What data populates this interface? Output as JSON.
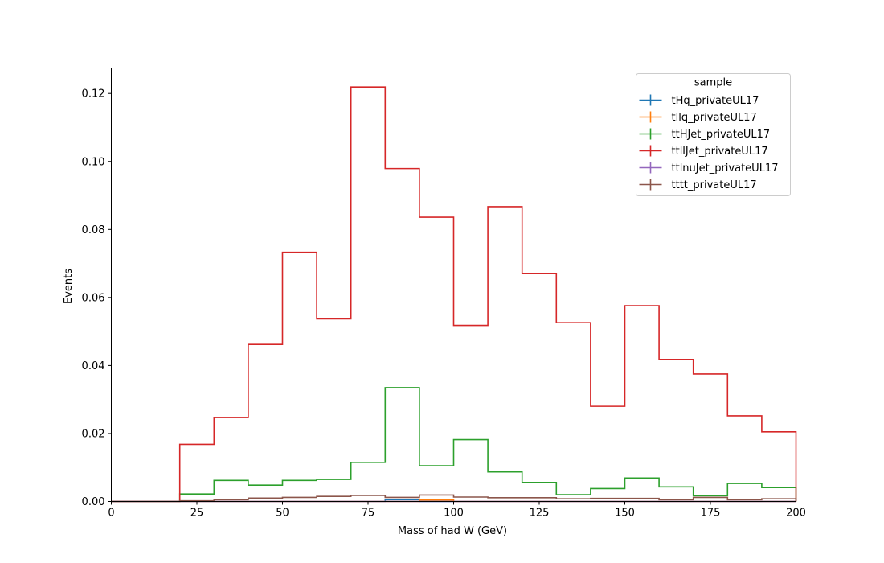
{
  "chart_data": {
    "type": "histogram-step",
    "xlabel": "Mass of had W (GeV)",
    "ylabel": "Events",
    "xlim": [
      0,
      200
    ],
    "ylim": [
      0,
      0.1275
    ],
    "x_ticks": [
      0,
      25,
      50,
      75,
      100,
      125,
      150,
      175,
      200
    ],
    "x_tick_labels": [
      "0",
      "25",
      "50",
      "75",
      "100",
      "125",
      "150",
      "175",
      "200"
    ],
    "y_ticks": [
      0.0,
      0.02,
      0.04,
      0.06,
      0.08,
      0.1,
      0.12
    ],
    "y_tick_labels": [
      "0.00",
      "0.02",
      "0.04",
      "0.06",
      "0.08",
      "0.10",
      "0.12"
    ],
    "bin_edges": [
      0,
      10,
      20,
      30,
      40,
      50,
      60,
      70,
      80,
      90,
      100,
      110,
      120,
      130,
      140,
      150,
      160,
      170,
      180,
      190,
      200
    ],
    "grid": false,
    "legend": {
      "title": "sample",
      "placement": "top-right"
    },
    "series": [
      {
        "name": "tHq_privateUL17",
        "color": "#1f77b4",
        "values": [
          0,
          0,
          0,
          0,
          0,
          0,
          0,
          0,
          0.0005,
          0,
          0,
          0,
          0,
          0,
          0,
          0,
          0,
          0,
          0,
          0
        ]
      },
      {
        "name": "tllq_privateUL17",
        "color": "#ff7f0e",
        "values": [
          0,
          0,
          0,
          0,
          0,
          0,
          0,
          0,
          0,
          0.0004,
          0,
          0,
          0,
          0,
          0,
          0,
          0,
          0,
          0,
          0
        ]
      },
      {
        "name": "ttHJet_privateUL17",
        "color": "#2ca02c",
        "values": [
          0,
          0,
          0.0022,
          0.0062,
          0.0048,
          0.0062,
          0.0065,
          0.0115,
          0.0335,
          0.0105,
          0.0182,
          0.0087,
          0.0056,
          0.002,
          0.0038,
          0.0069,
          0.0043,
          0.0017,
          0.0053,
          0.0041
        ]
      },
      {
        "name": "ttllJet_privateUL17",
        "color": "#d62728",
        "values": [
          0,
          0,
          0.0168,
          0.0247,
          0.0462,
          0.0733,
          0.0537,
          0.1219,
          0.0979,
          0.0836,
          0.0518,
          0.0867,
          0.067,
          0.0526,
          0.028,
          0.0576,
          0.0418,
          0.0375,
          0.0252,
          0.0205
        ]
      },
      {
        "name": "ttlnuJet_privateUL17",
        "color": "#9467bd",
        "values": [
          0,
          0,
          0,
          0,
          0,
          0,
          0,
          0,
          0,
          0,
          0,
          0,
          0,
          0,
          0,
          0,
          0,
          0,
          0,
          0
        ]
      },
      {
        "name": "tttt_privateUL17",
        "color": "#8c564b",
        "values": [
          0,
          0,
          0.0002,
          0.0005,
          0.001,
          0.0012,
          0.0015,
          0.0018,
          0.0012,
          0.0019,
          0.0013,
          0.0011,
          0.0011,
          0.0008,
          0.0009,
          0.0009,
          0.0005,
          0.0012,
          0.0005,
          0.0008
        ]
      }
    ]
  }
}
